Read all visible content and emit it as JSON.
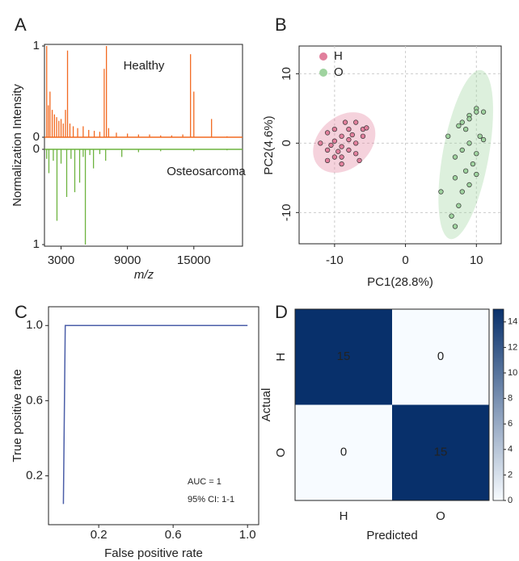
{
  "chart_data": [
    {
      "type": "mirror",
      "panel": "A",
      "ylabel": "Normalization Intensity",
      "xlabel": "m/z",
      "xlim": [
        1500,
        19400
      ],
      "xticks": [
        3000,
        9000,
        15000
      ],
      "ylim": [
        0,
        1
      ],
      "yticks": [
        0,
        1
      ],
      "series": [
        {
          "name": "Healthy",
          "color": "#f26a21",
          "x": [
            1700,
            1850,
            2000,
            2200,
            2400,
            2600,
            2800,
            3000,
            3200,
            3400,
            3585,
            3800,
            4100,
            4500,
            5000,
            5500,
            6000,
            6500,
            6900,
            7100,
            7300,
            8000,
            9000,
            10000,
            11000,
            12000,
            13000,
            14000,
            14700,
            15000,
            16600,
            18000
          ],
          "values": [
            1.0,
            0.35,
            0.5,
            0.3,
            0.25,
            0.22,
            0.18,
            0.2,
            0.15,
            0.3,
            0.95,
            0.15,
            0.12,
            0.1,
            0.12,
            0.08,
            0.07,
            0.06,
            0.75,
            1.0,
            0.1,
            0.05,
            0.04,
            0.03,
            0.03,
            0.02,
            0.02,
            0.03,
            0.91,
            0.5,
            0.2,
            0.01
          ]
        },
        {
          "name": "Osteosarcoma",
          "color": "#6db33f",
          "x": [
            1700,
            1900,
            2300,
            2630,
            3000,
            3510,
            3900,
            4240,
            4680,
            5000,
            5195,
            5600,
            5930,
            6500,
            7030,
            8490,
            10000,
            12000,
            15000,
            18000
          ],
          "values": [
            0.1,
            0.25,
            0.12,
            0.75,
            0.15,
            0.5,
            0.1,
            0.45,
            0.35,
            0.08,
            1.0,
            0.06,
            0.2,
            0.05,
            0.12,
            0.08,
            0.03,
            0.02,
            0.02,
            0.01
          ]
        }
      ]
    },
    {
      "type": "scatter",
      "panel": "B",
      "xlabel": "PC1(28.8%)",
      "ylabel": "PC2(4.6%)",
      "xlim": [
        -15,
        13.5
      ],
      "ylim": [
        -14.5,
        14
      ],
      "xticks": [
        -10,
        0,
        10
      ],
      "yticks": [
        -10,
        0,
        10
      ],
      "grid": true,
      "legend": "top-left",
      "series": [
        {
          "name": "H",
          "color": "#e17f9c",
          "x": [
            -10,
            -9,
            -8,
            -7,
            -6,
            -11,
            -10,
            -9,
            -8,
            -7,
            -6,
            -5.5,
            -12,
            -11,
            -10,
            -9,
            -8,
            -7,
            -6.5,
            -9.5,
            -10.5,
            -8.5,
            -7.5,
            -11,
            -9
          ],
          "values": [
            0.3,
            1,
            2,
            3,
            2,
            -1,
            -2,
            -3,
            -1,
            0,
            1,
            2.2,
            0,
            1.5,
            2,
            -0.5,
            0.5,
            -1.5,
            -2.5,
            -1.2,
            -0.3,
            3,
            1.2,
            -2.5,
            -2
          ]
        },
        {
          "name": "O",
          "color": "#9fd39f",
          "x": [
            10,
            9,
            10,
            8,
            9,
            11,
            7.5,
            8.5,
            10.5,
            6,
            9,
            8,
            10,
            7,
            9.5,
            8.5,
            10,
            7,
            9,
            8,
            5,
            7.5,
            6.5,
            7,
            11
          ],
          "values": [
            5,
            4,
            4.5,
            3,
            3.5,
            4.5,
            2.5,
            2,
            1,
            1,
            0,
            -1,
            -1.5,
            -2,
            -3,
            -4,
            -4.5,
            -5,
            -6,
            -7,
            -7,
            -9,
            -10.5,
            -12,
            0.5
          ]
        }
      ]
    },
    {
      "type": "line",
      "panel": "C",
      "xlabel": "False positive rate",
      "ylabel": "True positive rate",
      "xlim": [
        -0.07,
        1.06
      ],
      "ylim": [
        -0.06,
        1.1
      ],
      "xticks": [
        0.2,
        0.6,
        {
          "value": 1,
          "label": "1.0"
        }
      ],
      "yticks": [
        0.2,
        0.6,
        {
          "value": 1,
          "label": "1.0"
        }
      ],
      "annotations": [
        "AUC = 1",
        "95% CI: 1-1"
      ],
      "series": [
        {
          "color": "#4b5ea8",
          "x": [
            0.01,
            0.02,
            1
          ],
          "values": [
            0.05,
            1,
            1
          ]
        }
      ]
    },
    {
      "type": "heatmap",
      "panel": "D",
      "xlabel": "Predicted",
      "ylabel": "Actual",
      "x_categories": [
        "H",
        "O"
      ],
      "y_categories": [
        "H",
        "O"
      ],
      "values": [
        [
          15,
          0
        ],
        [
          0,
          15
        ]
      ],
      "colorbar_lim": [
        0,
        15
      ],
      "colorbar_ticks": [
        0,
        2,
        4,
        6,
        8,
        10,
        12,
        14
      ],
      "colormap": [
        "#f7fbff",
        "#08306b"
      ]
    }
  ]
}
